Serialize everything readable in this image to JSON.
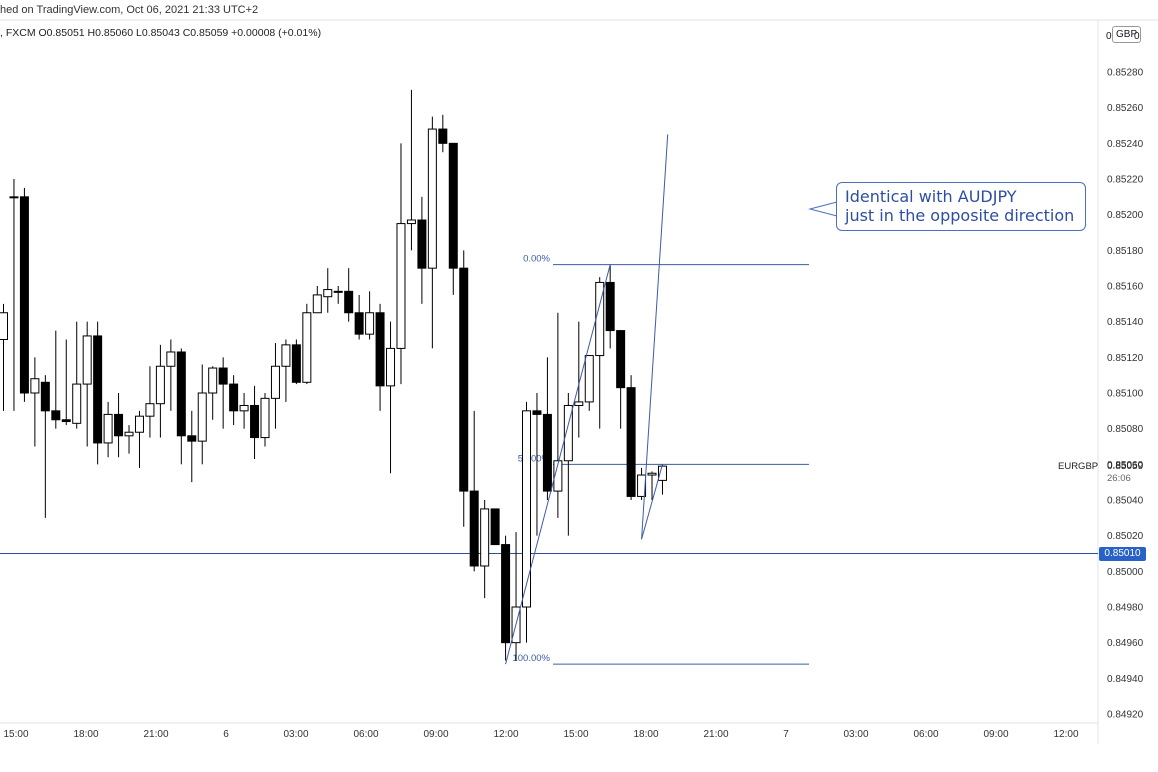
{
  "header": {
    "published": "hed on TradingView.com, Oct 06, 2021 21:33 UTC+2",
    "ohlc": ", FXCM  O0.85051  H0.85060  L0.85043  C0.85059  +0.00008 (+0.01%)"
  },
  "price_scale": {
    "currency": "GBP",
    "left_digit": "0",
    "right_digit": "0",
    "symbol": "EURGBP",
    "last_price": "0.85059",
    "countdown": "26:06",
    "horizontal_line_price": "0.85010"
  },
  "annotation": {
    "line1": "Identical with AUDJPY",
    "line2": "just in the opposite direction"
  },
  "colors": {
    "bull_fill": "#ffffff",
    "bear_fill": "#000000",
    "drawing": "#3c5ba8",
    "hline": "#2a4e9c",
    "badge": "#2962c7"
  },
  "chart_data": {
    "type": "candlestick",
    "symbol": "EURGBP",
    "ylim": [
      0.8491,
      0.8531
    ],
    "y_ticks": [
      "0.85280",
      "0.85260",
      "0.85240",
      "0.85220",
      "0.85200",
      "0.85180",
      "0.85160",
      "0.85140",
      "0.85120",
      "0.85100",
      "0.85080",
      "0.85060",
      "0.85040",
      "0.85020",
      "0.85000",
      "0.84980",
      "0.84960",
      "0.84940",
      "0.84920"
    ],
    "x_ticks": [
      "15:00",
      "18:00",
      "21:00",
      "6",
      "03:00",
      "06:00",
      "09:00",
      "12:00",
      "15:00",
      "18:00",
      "21:00",
      "7",
      "03:00",
      "06:00",
      "09:00",
      "12:00"
    ],
    "candles": [
      {
        "o": 0.8513,
        "h": 0.8515,
        "l": 0.8509,
        "c": 0.85145
      },
      {
        "o": 0.8521,
        "h": 0.8522,
        "l": 0.8509,
        "c": 0.8521
      },
      {
        "o": 0.8521,
        "h": 0.85215,
        "l": 0.85095,
        "c": 0.851
      },
      {
        "o": 0.851,
        "h": 0.8512,
        "l": 0.8507,
        "c": 0.85108
      },
      {
        "o": 0.85106,
        "h": 0.8511,
        "l": 0.8503,
        "c": 0.8509
      },
      {
        "o": 0.8509,
        "h": 0.85135,
        "l": 0.8508,
        "c": 0.85085
      },
      {
        "o": 0.85085,
        "h": 0.8513,
        "l": 0.85082,
        "c": 0.85084
      },
      {
        "o": 0.85083,
        "h": 0.8514,
        "l": 0.8508,
        "c": 0.85105
      },
      {
        "o": 0.85105,
        "h": 0.8514,
        "l": 0.8507,
        "c": 0.85132
      },
      {
        "o": 0.85132,
        "h": 0.8514,
        "l": 0.8506,
        "c": 0.85072
      },
      {
        "o": 0.85072,
        "h": 0.85095,
        "l": 0.85064,
        "c": 0.85088
      },
      {
        "o": 0.85088,
        "h": 0.851,
        "l": 0.85064,
        "c": 0.85076
      },
      {
        "o": 0.85076,
        "h": 0.85082,
        "l": 0.85066,
        "c": 0.85078
      },
      {
        "o": 0.85078,
        "h": 0.8509,
        "l": 0.85058,
        "c": 0.85087
      },
      {
        "o": 0.85087,
        "h": 0.85115,
        "l": 0.85075,
        "c": 0.85094
      },
      {
        "o": 0.85094,
        "h": 0.85127,
        "l": 0.85075,
        "c": 0.85115
      },
      {
        "o": 0.85115,
        "h": 0.8513,
        "l": 0.8509,
        "c": 0.85123
      },
      {
        "o": 0.85123,
        "h": 0.85125,
        "l": 0.8506,
        "c": 0.85076
      },
      {
        "o": 0.85076,
        "h": 0.8509,
        "l": 0.8505,
        "c": 0.85073
      },
      {
        "o": 0.85073,
        "h": 0.85116,
        "l": 0.8506,
        "c": 0.851
      },
      {
        "o": 0.851,
        "h": 0.85115,
        "l": 0.85085,
        "c": 0.85114
      },
      {
        "o": 0.85114,
        "h": 0.8512,
        "l": 0.8508,
        "c": 0.85105
      },
      {
        "o": 0.85105,
        "h": 0.8511,
        "l": 0.85082,
        "c": 0.8509
      },
      {
        "o": 0.8509,
        "h": 0.851,
        "l": 0.8508,
        "c": 0.85093
      },
      {
        "o": 0.85093,
        "h": 0.85104,
        "l": 0.85063,
        "c": 0.85075
      },
      {
        "o": 0.85075,
        "h": 0.851,
        "l": 0.8507,
        "c": 0.85097
      },
      {
        "o": 0.85097,
        "h": 0.85128,
        "l": 0.8508,
        "c": 0.85115
      },
      {
        "o": 0.85115,
        "h": 0.8513,
        "l": 0.85095,
        "c": 0.85127
      },
      {
        "o": 0.85127,
        "h": 0.8513,
        "l": 0.85105,
        "c": 0.85106
      },
      {
        "o": 0.85106,
        "h": 0.8515,
        "l": 0.85105,
        "c": 0.85145
      },
      {
        "o": 0.85145,
        "h": 0.8516,
        "l": 0.85145,
        "c": 0.85155
      },
      {
        "o": 0.85154,
        "h": 0.8517,
        "l": 0.85145,
        "c": 0.85158
      },
      {
        "o": 0.85157,
        "h": 0.8516,
        "l": 0.8515,
        "c": 0.85157
      },
      {
        "o": 0.85157,
        "h": 0.8517,
        "l": 0.8514,
        "c": 0.85145
      },
      {
        "o": 0.85145,
        "h": 0.85155,
        "l": 0.8513,
        "c": 0.85133
      },
      {
        "o": 0.85133,
        "h": 0.85157,
        "l": 0.8513,
        "c": 0.85145
      },
      {
        "o": 0.85145,
        "h": 0.8515,
        "l": 0.8509,
        "c": 0.85104
      },
      {
        "o": 0.85104,
        "h": 0.8514,
        "l": 0.85055,
        "c": 0.85125
      },
      {
        "o": 0.85125,
        "h": 0.8524,
        "l": 0.85105,
        "c": 0.85195
      },
      {
        "o": 0.85195,
        "h": 0.8527,
        "l": 0.8518,
        "c": 0.85197
      },
      {
        "o": 0.85197,
        "h": 0.8521,
        "l": 0.8515,
        "c": 0.8517
      },
      {
        "o": 0.8517,
        "h": 0.85255,
        "l": 0.85125,
        "c": 0.85248
      },
      {
        "o": 0.85248,
        "h": 0.85256,
        "l": 0.85235,
        "c": 0.8524
      },
      {
        "o": 0.8524,
        "h": 0.8524,
        "l": 0.85155,
        "c": 0.8517
      },
      {
        "o": 0.8517,
        "h": 0.8518,
        "l": 0.85025,
        "c": 0.85045
      },
      {
        "o": 0.85045,
        "h": 0.8509,
        "l": 0.85,
        "c": 0.85003
      },
      {
        "o": 0.85003,
        "h": 0.8504,
        "l": 0.84985,
        "c": 0.85035
      },
      {
        "o": 0.85035,
        "h": 0.85035,
        "l": 0.85015,
        "c": 0.85015
      },
      {
        "o": 0.85015,
        "h": 0.8502,
        "l": 0.8495,
        "c": 0.8496
      },
      {
        "o": 0.8496,
        "h": 0.85022,
        "l": 0.8495,
        "c": 0.8498
      },
      {
        "o": 0.8498,
        "h": 0.85095,
        "l": 0.8496,
        "c": 0.8509
      },
      {
        "o": 0.8509,
        "h": 0.851,
        "l": 0.8502,
        "c": 0.85088
      },
      {
        "o": 0.85088,
        "h": 0.8512,
        "l": 0.8504,
        "c": 0.85045
      },
      {
        "o": 0.85045,
        "h": 0.85145,
        "l": 0.8503,
        "c": 0.85062
      },
      {
        "o": 0.85062,
        "h": 0.851,
        "l": 0.8502,
        "c": 0.85093
      },
      {
        "o": 0.85093,
        "h": 0.8514,
        "l": 0.85075,
        "c": 0.85095
      },
      {
        "o": 0.85095,
        "h": 0.8512,
        "l": 0.8509,
        "c": 0.85121
      },
      {
        "o": 0.85121,
        "h": 0.85165,
        "l": 0.8508,
        "c": 0.85162
      },
      {
        "o": 0.85162,
        "h": 0.85172,
        "l": 0.85125,
        "c": 0.85135
      },
      {
        "o": 0.85135,
        "h": 0.85135,
        "l": 0.8508,
        "c": 0.85103
      },
      {
        "o": 0.85103,
        "h": 0.8511,
        "l": 0.8504,
        "c": 0.85042
      },
      {
        "o": 0.85042,
        "h": 0.85058,
        "l": 0.8504,
        "c": 0.85054
      },
      {
        "o": 0.85054,
        "h": 0.85056,
        "l": 0.8504,
        "c": 0.85055
      },
      {
        "o": 0.85051,
        "h": 0.8506,
        "l": 0.85043,
        "c": 0.85059
      }
    ],
    "horizontal_line": 0.8501,
    "fibonacci": {
      "levels": [
        {
          "label": "0.00%",
          "price": 0.85172
        },
        {
          "label": "50.00%",
          "price": 0.8506
        },
        {
          "label": "100.00%",
          "price": 0.84948
        }
      ]
    },
    "trend_lines": [
      {
        "from": {
          "candle": 48,
          "price": 0.84948
        },
        "to": {
          "candle": 58,
          "price": 0.85172
        }
      },
      {
        "from": {
          "candle": 61,
          "price": 0.85018
        },
        "to": {
          "candle": 63,
          "price": 0.8506
        }
      },
      {
        "from": {
          "candle": 61,
          "price": 0.85018
        },
        "to": {
          "candle": 63.5,
          "price": 0.85245
        }
      }
    ]
  }
}
